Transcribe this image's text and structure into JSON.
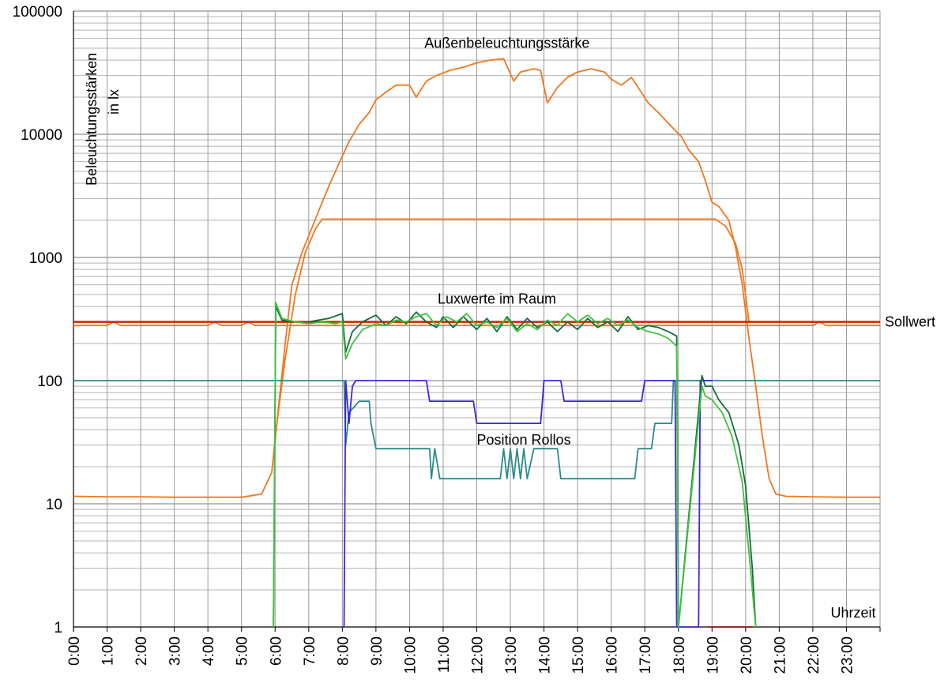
{
  "chart_data": {
    "type": "line",
    "y_scale": "log",
    "ylim": [
      1,
      100000
    ],
    "xlim": [
      0,
      24
    ],
    "grid": true,
    "ylabel": [
      "Beleuchtungsstärken",
      "in lx"
    ],
    "xlabel": "Uhrzeit",
    "y_ticks": [
      1,
      10,
      100,
      1000,
      10000,
      100000
    ],
    "y_tick_labels": [
      "1",
      "10",
      "100",
      "1000",
      "10000",
      "100000"
    ],
    "x_tick_labels": [
      "0:00",
      "1:00",
      "2:00",
      "3:00",
      "4:00",
      "5:00",
      "6:00",
      "7:00",
      "8:00",
      "9:00",
      "10:00",
      "11:00",
      "12:00",
      "13:00",
      "14:00",
      "15:00",
      "16:00",
      "17:00",
      "18:00",
      "19:00",
      "20:00",
      "21:00",
      "22:00",
      "23:00"
    ],
    "annotations": [
      {
        "text": "Außenbeleuchtungsstärke",
        "x": 12.9,
        "y": 55000
      },
      {
        "text": "Luxwerte im Raum",
        "x": 12.6,
        "y": 460
      },
      {
        "text": "Position Rollos",
        "x": 13.4,
        "y": 33
      },
      {
        "text": "Sollwert",
        "x": 24.2,
        "y": 300
      },
      {
        "text": "Uhrzeit",
        "x": 23.2,
        "y": 1.3
      }
    ],
    "series": [
      {
        "color": "#f07820",
        "values": [
          [
            0,
            11.5
          ],
          [
            1,
            11.4
          ],
          [
            2,
            11.4
          ],
          [
            3,
            11.3
          ],
          [
            4,
            11.3
          ],
          [
            5,
            11.3
          ],
          [
            5.6,
            12
          ],
          [
            5.9,
            18
          ],
          [
            6.1,
            60
          ],
          [
            6.3,
            200
          ],
          [
            6.5,
            600
          ],
          [
            6.8,
            1100
          ],
          [
            7,
            1500
          ],
          [
            7.3,
            2400
          ],
          [
            7.6,
            3800
          ],
          [
            7.9,
            5800
          ],
          [
            8.2,
            8700
          ],
          [
            8.5,
            12000
          ],
          [
            8.8,
            15000
          ],
          [
            9,
            19000
          ],
          [
            9.3,
            22000
          ],
          [
            9.6,
            25000
          ],
          [
            10,
            25000
          ],
          [
            10.2,
            20000
          ],
          [
            10.5,
            27000
          ],
          [
            10.8,
            30000
          ],
          [
            11.2,
            33000
          ],
          [
            11.6,
            35000
          ],
          [
            12,
            38000
          ],
          [
            12.4,
            40000
          ],
          [
            12.8,
            41000
          ],
          [
            13.1,
            27000
          ],
          [
            13.3,
            32000
          ],
          [
            13.7,
            34000
          ],
          [
            13.9,
            33000
          ],
          [
            14.1,
            18000
          ],
          [
            14.4,
            24000
          ],
          [
            14.7,
            29000
          ],
          [
            15,
            32000
          ],
          [
            15.4,
            34000
          ],
          [
            15.8,
            32000
          ],
          [
            16,
            28000
          ],
          [
            16.3,
            25000
          ],
          [
            16.6,
            29000
          ],
          [
            16.8,
            24000
          ],
          [
            17.1,
            18000
          ],
          [
            17.4,
            15000
          ],
          [
            17.8,
            11500
          ],
          [
            18.1,
            9500
          ],
          [
            18.3,
            7500
          ],
          [
            18.6,
            6000
          ],
          [
            18.8,
            4200
          ],
          [
            19,
            2800
          ],
          [
            19.2,
            2600
          ],
          [
            19.5,
            2000
          ],
          [
            19.7,
            1200
          ],
          [
            19.9,
            600
          ],
          [
            20.1,
            220
          ],
          [
            20.3,
            90
          ],
          [
            20.5,
            35
          ],
          [
            20.7,
            16
          ],
          [
            20.9,
            12
          ],
          [
            21.2,
            11.5
          ],
          [
            22,
            11.4
          ],
          [
            23,
            11.3
          ],
          [
            24,
            11.3
          ]
        ]
      },
      {
        "color": "#f07820",
        "values": [
          [
            6,
            35
          ],
          [
            6.3,
            150
          ],
          [
            6.6,
            500
          ],
          [
            6.9,
            1100
          ],
          [
            7.2,
            1700
          ],
          [
            7.4,
            2050
          ],
          [
            8,
            2050
          ],
          [
            12,
            2050
          ],
          [
            16,
            2050
          ],
          [
            18,
            2050
          ],
          [
            19.1,
            2050
          ],
          [
            19.4,
            1800
          ],
          [
            19.7,
            1300
          ],
          [
            19.9,
            800
          ],
          [
            20.1,
            300
          ]
        ]
      },
      {
        "color": "#f07820",
        "values": [
          [
            0,
            280
          ],
          [
            1,
            280
          ],
          [
            1.2,
            300
          ],
          [
            1.4,
            280
          ],
          [
            2,
            280
          ],
          [
            3,
            280
          ],
          [
            4,
            280
          ],
          [
            4.2,
            300
          ],
          [
            4.4,
            280
          ],
          [
            5,
            280
          ],
          [
            5.2,
            300
          ],
          [
            5.4,
            280
          ],
          [
            6,
            280
          ],
          [
            20.1,
            280
          ],
          [
            21,
            280
          ],
          [
            22,
            280
          ],
          [
            22.2,
            300
          ],
          [
            22.4,
            280
          ],
          [
            24,
            280
          ]
        ]
      },
      {
        "color": "#cc2200",
        "values": [
          [
            0,
            300
          ],
          [
            24,
            300
          ]
        ]
      },
      {
        "color": "#2b8a8a",
        "values": [
          [
            0,
            100
          ],
          [
            5.9,
            100
          ],
          [
            6,
            100
          ],
          [
            8.05,
            100
          ],
          [
            8.1,
            30
          ],
          [
            8.2,
            55
          ],
          [
            8.5,
            68
          ],
          [
            8.8,
            68
          ],
          [
            8.85,
            45
          ],
          [
            9,
            28
          ],
          [
            10,
            28
          ],
          [
            10.4,
            28
          ],
          [
            10.6,
            28
          ],
          [
            10.65,
            16
          ],
          [
            10.75,
            28
          ],
          [
            10.9,
            16
          ],
          [
            11,
            16
          ],
          [
            12,
            16
          ],
          [
            12.7,
            16
          ],
          [
            12.8,
            28
          ],
          [
            12.9,
            16
          ],
          [
            13,
            28
          ],
          [
            13.1,
            16
          ],
          [
            13.2,
            28
          ],
          [
            13.3,
            16
          ],
          [
            13.4,
            28
          ],
          [
            13.5,
            16
          ],
          [
            13.7,
            28
          ],
          [
            14.1,
            28
          ],
          [
            14.4,
            28
          ],
          [
            14.5,
            16
          ],
          [
            15,
            16
          ],
          [
            16,
            16
          ],
          [
            16.7,
            16
          ],
          [
            16.8,
            28
          ],
          [
            17,
            28
          ],
          [
            17.2,
            28
          ],
          [
            17.3,
            45
          ],
          [
            17.8,
            45
          ],
          [
            17.85,
            100
          ],
          [
            24,
            100
          ]
        ]
      },
      {
        "color": "#3a2ad6",
        "values": [
          [
            8,
            1
          ],
          [
            8.05,
            1
          ],
          [
            8.1,
            100
          ],
          [
            8.2,
            45
          ],
          [
            8.3,
            90
          ],
          [
            8.4,
            100
          ],
          [
            9,
            100
          ],
          [
            10.5,
            100
          ],
          [
            10.6,
            68
          ],
          [
            11,
            68
          ],
          [
            11.9,
            68
          ],
          [
            12,
            45
          ],
          [
            13,
            45
          ],
          [
            13.9,
            45
          ],
          [
            14,
            100
          ],
          [
            14.5,
            100
          ],
          [
            14.6,
            68
          ],
          [
            15,
            68
          ],
          [
            16.9,
            68
          ],
          [
            17,
            100
          ],
          [
            17.9,
            100
          ],
          [
            17.95,
            1
          ],
          [
            18.6,
            1
          ],
          [
            18.65,
            100
          ],
          [
            19,
            100
          ]
        ]
      },
      {
        "color": "#176b3a",
        "values": [
          [
            5.95,
            1
          ],
          [
            6.02,
            400
          ],
          [
            6.2,
            310
          ],
          [
            6.5,
            300
          ],
          [
            7,
            300
          ],
          [
            7.3,
            310
          ],
          [
            7.6,
            320
          ],
          [
            8,
            350
          ],
          [
            8.1,
            170
          ],
          [
            8.3,
            250
          ],
          [
            8.6,
            300
          ],
          [
            9,
            340
          ],
          [
            9.3,
            280
          ],
          [
            9.6,
            330
          ],
          [
            9.9,
            290
          ],
          [
            10.2,
            360
          ],
          [
            10.5,
            300
          ],
          [
            10.8,
            270
          ],
          [
            11,
            330
          ],
          [
            11.3,
            270
          ],
          [
            11.6,
            330
          ],
          [
            12,
            260
          ],
          [
            12.3,
            320
          ],
          [
            12.6,
            250
          ],
          [
            12.9,
            330
          ],
          [
            13.2,
            260
          ],
          [
            13.5,
            320
          ],
          [
            13.8,
            270
          ],
          [
            14.1,
            300
          ],
          [
            14.4,
            250
          ],
          [
            14.7,
            300
          ],
          [
            15,
            260
          ],
          [
            15.3,
            320
          ],
          [
            15.6,
            270
          ],
          [
            15.9,
            300
          ],
          [
            16.2,
            250
          ],
          [
            16.5,
            330
          ],
          [
            16.8,
            260
          ],
          [
            17.1,
            280
          ],
          [
            17.4,
            270
          ],
          [
            17.7,
            250
          ],
          [
            17.95,
            230
          ],
          [
            18,
            1
          ],
          [
            18.7,
            110
          ],
          [
            18.8,
            90
          ],
          [
            19,
            90
          ],
          [
            19.2,
            70
          ],
          [
            19.5,
            55
          ],
          [
            19.8,
            30
          ],
          [
            20,
            14
          ],
          [
            20.2,
            3
          ],
          [
            20.3,
            1
          ]
        ]
      },
      {
        "color": "#3ec23e",
        "values": [
          [
            5.95,
            1
          ],
          [
            6.02,
            430
          ],
          [
            6.2,
            320
          ],
          [
            6.6,
            300
          ],
          [
            7,
            290
          ],
          [
            7.4,
            300
          ],
          [
            7.8,
            290
          ],
          [
            8,
            300
          ],
          [
            8.1,
            150
          ],
          [
            8.3,
            200
          ],
          [
            8.6,
            260
          ],
          [
            9,
            290
          ],
          [
            9.3,
            280
          ],
          [
            9.6,
            310
          ],
          [
            9.9,
            300
          ],
          [
            10.2,
            330
          ],
          [
            10.5,
            350
          ],
          [
            10.8,
            280
          ],
          [
            11.1,
            330
          ],
          [
            11.4,
            300
          ],
          [
            11.7,
            350
          ],
          [
            12,
            280
          ],
          [
            12.3,
            300
          ],
          [
            12.6,
            270
          ],
          [
            12.9,
            320
          ],
          [
            13.2,
            250
          ],
          [
            13.5,
            290
          ],
          [
            13.8,
            260
          ],
          [
            14.1,
            310
          ],
          [
            14.4,
            280
          ],
          [
            14.7,
            350
          ],
          [
            15,
            300
          ],
          [
            15.3,
            340
          ],
          [
            15.6,
            290
          ],
          [
            15.9,
            320
          ],
          [
            16.2,
            280
          ],
          [
            16.5,
            310
          ],
          [
            16.8,
            270
          ],
          [
            17.1,
            250
          ],
          [
            17.4,
            240
          ],
          [
            17.7,
            220
          ],
          [
            17.95,
            190
          ],
          [
            18,
            1
          ],
          [
            18.7,
            90
          ],
          [
            18.8,
            75
          ],
          [
            19,
            70
          ],
          [
            19.3,
            55
          ],
          [
            19.6,
            35
          ],
          [
            19.9,
            15
          ],
          [
            20.1,
            4
          ],
          [
            20.3,
            1
          ]
        ]
      },
      {
        "color": "#8b1a1a",
        "values": [
          [
            18.9,
            1
          ],
          [
            20.2,
            1
          ]
        ]
      }
    ]
  }
}
